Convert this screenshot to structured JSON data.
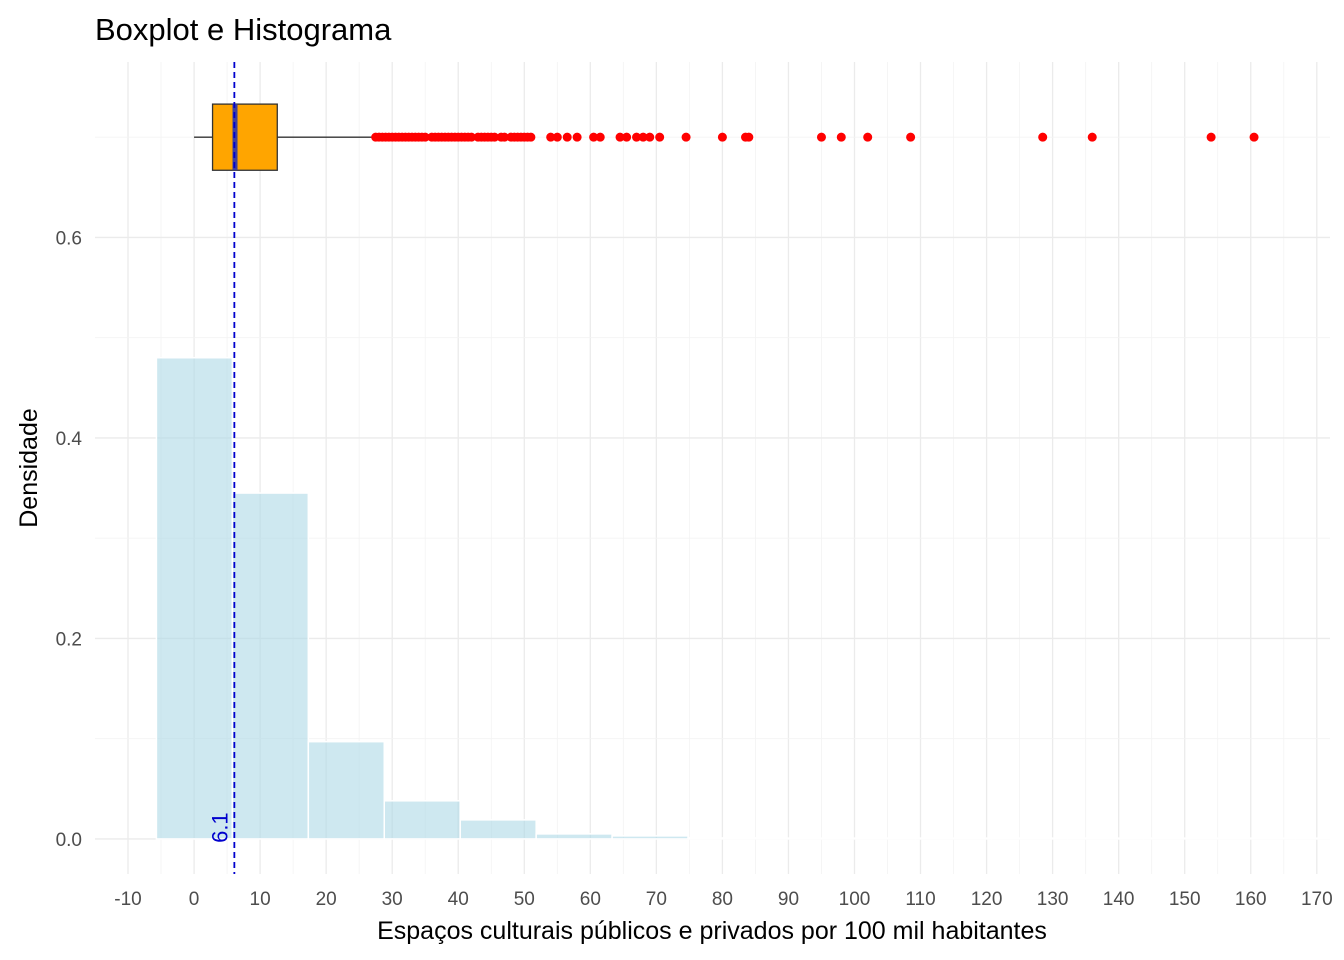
{
  "chart_data": {
    "type": "bar",
    "title": "Boxplot e Histograma",
    "xlabel": "Espaços culturais públicos e privados por 100 mil habitantes",
    "ylabel": "Densidade",
    "xlim": [
      -15,
      172
    ],
    "ylim": [
      -0.035,
      0.775
    ],
    "x_ticks": [
      -10,
      0,
      10,
      20,
      30,
      40,
      50,
      60,
      70,
      80,
      90,
      100,
      110,
      120,
      130,
      140,
      150,
      160,
      170
    ],
    "x_tick_labels": [
      "-10",
      "0",
      "10",
      "20",
      "30",
      "40",
      "50",
      "60",
      "70",
      "80",
      "90",
      "100",
      "110",
      "120",
      "130",
      "140",
      "150",
      "160",
      "170"
    ],
    "y_ticks": [
      0.0,
      0.2,
      0.4,
      0.6
    ],
    "y_tick_labels": [
      "0.0",
      "0.2",
      "0.4",
      "0.6"
    ],
    "grid": true,
    "histogram": {
      "fill_color": "#add8e6",
      "bins": [
        {
          "x0": -5.7,
          "x1": 5.8,
          "density": 0.48
        },
        {
          "x0": 5.8,
          "x1": 17.3,
          "density": 0.345
        },
        {
          "x0": 17.3,
          "x1": 28.8,
          "density": 0.097
        },
        {
          "x0": 28.8,
          "x1": 40.3,
          "density": 0.038
        },
        {
          "x0": 40.3,
          "x1": 51.8,
          "density": 0.019
        },
        {
          "x0": 51.8,
          "x1": 63.3,
          "density": 0.005
        },
        {
          "x0": 63.3,
          "x1": 74.8,
          "density": 0.003
        },
        {
          "x0": 74.8,
          "x1": 86.3,
          "density": 0.001
        },
        {
          "x0": 86.3,
          "x1": 97.8,
          "density": 0.0
        },
        {
          "x0": 97.8,
          "x1": 109.3,
          "density": 0.0
        },
        {
          "x0": 109.3,
          "x1": 120.8,
          "density": 0.0
        },
        {
          "x0": 120.8,
          "x1": 132.3,
          "density": 0.0
        },
        {
          "x0": 132.3,
          "x1": 143.8,
          "density": 0.0
        },
        {
          "x0": 143.8,
          "x1": 155.3,
          "density": 0.0
        },
        {
          "x0": 155.3,
          "x1": 166.8,
          "density": 0.0
        },
        {
          "x0": 166.8,
          "x1": 178.3,
          "density": 0.0
        }
      ]
    },
    "boxplot": {
      "y": 0.7,
      "y_bottom": 0.667,
      "y_top": 0.733,
      "whisker_low": 0.0,
      "q1": 2.8,
      "median": 6.2,
      "q3": 12.6,
      "whisker_high": 27.2,
      "box_color": "#ffa500",
      "median_color": "#3f3f9f",
      "outlier_color": "#ff0000",
      "outliers": [
        27.5,
        28.0,
        28.5,
        29.0,
        29.5,
        30.0,
        30.5,
        31.0,
        31.5,
        32.0,
        32.5,
        33.0,
        33.5,
        34.0,
        34.5,
        35.0,
        36.0,
        36.5,
        37.0,
        37.5,
        38.0,
        38.5,
        39.0,
        39.5,
        40.0,
        40.5,
        41.0,
        41.5,
        42.0,
        43.0,
        43.5,
        44.0,
        44.5,
        45.0,
        45.5,
        46.5,
        47.0,
        48.0,
        48.5,
        49.0,
        49.5,
        50.0,
        50.5,
        51.0,
        54.0,
        55.0,
        56.5,
        58.0,
        60.5,
        61.5,
        64.5,
        65.5,
        67.0,
        68.0,
        69.0,
        70.5,
        74.5,
        80.0,
        83.5,
        84.0,
        95.0,
        98.0,
        102.0,
        108.5,
        128.5,
        136.0,
        154.0,
        160.5
      ]
    },
    "median_line": {
      "x": 6.1,
      "label": "6.1",
      "color": "#0000cd"
    }
  }
}
